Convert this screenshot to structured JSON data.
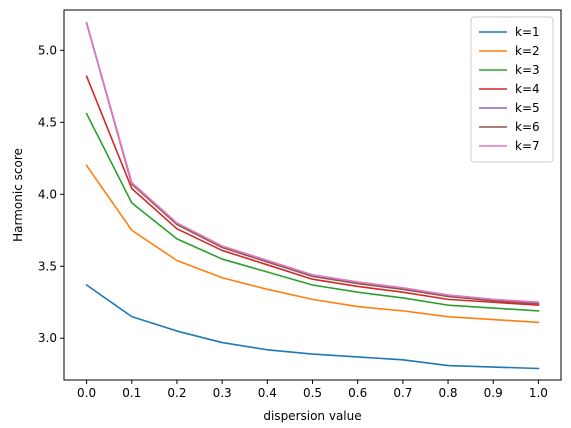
{
  "chart_data": {
    "type": "line",
    "xlabel": "dispersion value",
    "ylabel": "Harmonic score",
    "x": [
      0.0,
      0.1,
      0.2,
      0.3,
      0.4,
      0.5,
      0.6,
      0.7,
      0.8,
      0.9,
      1.0
    ],
    "x_tick_labels": [
      "0.0",
      "0.1",
      "0.2",
      "0.3",
      "0.4",
      "0.5",
      "0.6",
      "0.7",
      "0.8",
      "0.9",
      "1.0"
    ],
    "y_ticks": [
      3.0,
      3.5,
      4.0,
      4.5,
      5.0
    ],
    "y_tick_labels": [
      "3.0",
      "3.5",
      "4.0",
      "4.5",
      "5.0"
    ],
    "xlim": [
      -0.05,
      1.05
    ],
    "ylim": [
      2.71,
      5.28
    ],
    "grid": false,
    "legend_position": "top-right",
    "series": [
      {
        "name": "k=1",
        "color": "#1f77b4",
        "values": [
          3.37,
          3.15,
          3.05,
          2.97,
          2.92,
          2.89,
          2.87,
          2.85,
          2.81,
          2.8,
          2.79
        ]
      },
      {
        "name": "k=2",
        "color": "#ff7f0e",
        "values": [
          4.2,
          3.75,
          3.54,
          3.42,
          3.34,
          3.27,
          3.22,
          3.19,
          3.15,
          3.13,
          3.11
        ]
      },
      {
        "name": "k=3",
        "color": "#2ca02c",
        "values": [
          4.56,
          3.94,
          3.69,
          3.55,
          3.46,
          3.37,
          3.32,
          3.28,
          3.23,
          3.21,
          3.19
        ]
      },
      {
        "name": "k=4",
        "color": "#d62728",
        "values": [
          4.82,
          4.04,
          3.76,
          3.61,
          3.51,
          3.41,
          3.36,
          3.32,
          3.27,
          3.25,
          3.23
        ]
      },
      {
        "name": "k=5",
        "color": "#9467bd",
        "values": [
          5.19,
          4.08,
          3.8,
          3.64,
          3.54,
          3.44,
          3.39,
          3.35,
          3.3,
          3.27,
          3.25
        ]
      },
      {
        "name": "k=6",
        "color": "#8c564b",
        "values": [
          5.19,
          4.07,
          3.79,
          3.63,
          3.53,
          3.43,
          3.38,
          3.34,
          3.29,
          3.26,
          3.24
        ]
      },
      {
        "name": "k=7",
        "color": "#e377c2",
        "values": [
          5.19,
          4.08,
          3.8,
          3.64,
          3.54,
          3.44,
          3.39,
          3.35,
          3.3,
          3.27,
          3.25
        ]
      }
    ]
  }
}
